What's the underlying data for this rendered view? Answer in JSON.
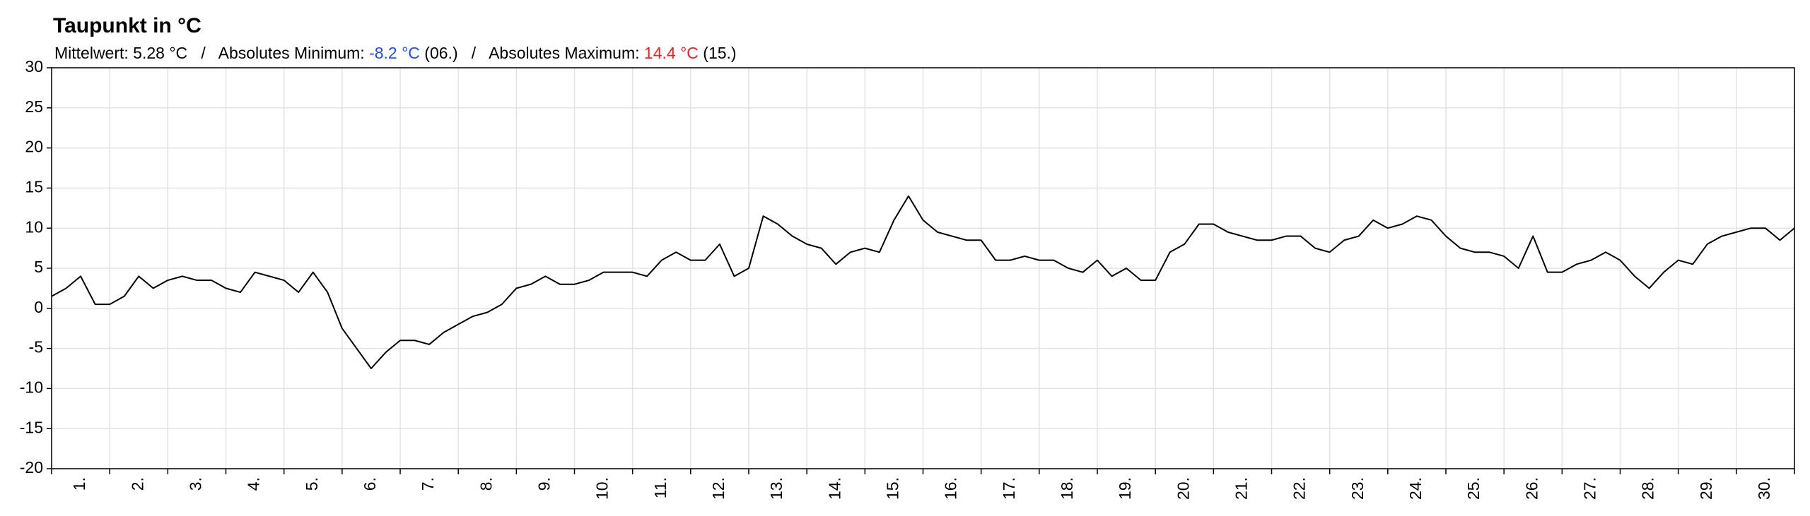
{
  "chart_data": {
    "type": "line",
    "title": "Taupunkt in °C",
    "subtitle_parts": [
      {
        "text": "Mittelwert: 5.28 °C   /   Absolutes Minimum: "
      },
      {
        "text": "-8.2 °C",
        "color": "#1a4cff"
      },
      {
        "text": " (06.)   /   Absolutes Maximum: "
      },
      {
        "text": "14.4 °C",
        "color": "#ff1a1a"
      },
      {
        "text": " (15.)"
      }
    ],
    "categories": [
      "1.",
      "2.",
      "3.",
      "4.",
      "5.",
      "6.",
      "7.",
      "8.",
      "9.",
      "10.",
      "11.",
      "12.",
      "13.",
      "14.",
      "15.",
      "16.",
      "17.",
      "18.",
      "19.",
      "20.",
      "21.",
      "22.",
      "23.",
      "24.",
      "25.",
      "26.",
      "27.",
      "28.",
      "29.",
      "30."
    ],
    "x": [
      0,
      0.25,
      0.5,
      0.75,
      1,
      1.25,
      1.5,
      1.75,
      2,
      2.25,
      2.5,
      2.75,
      3,
      3.25,
      3.5,
      3.75,
      4,
      4.25,
      4.5,
      4.75,
      5,
      5.25,
      5.5,
      5.75,
      6,
      6.25,
      6.5,
      6.75,
      7,
      7.25,
      7.5,
      7.75,
      8,
      8.25,
      8.5,
      8.75,
      9,
      9.25,
      9.5,
      9.75,
      10,
      10.25,
      10.5,
      10.75,
      11,
      11.25,
      11.5,
      11.75,
      12,
      12.25,
      12.5,
      12.75,
      13,
      13.25,
      13.5,
      13.75,
      14,
      14.25,
      14.5,
      14.75,
      15,
      15.25,
      15.5,
      15.75,
      16,
      16.25,
      16.5,
      16.75,
      17,
      17.25,
      17.5,
      17.75,
      18,
      18.25,
      18.5,
      18.75,
      19,
      19.25,
      19.5,
      19.75,
      20,
      20.25,
      20.5,
      20.75,
      21,
      21.25,
      21.5,
      21.75,
      22,
      22.25,
      22.5,
      22.75,
      23,
      23.25,
      23.5,
      23.75,
      24,
      24.25,
      24.5,
      24.75,
      25,
      25.25,
      25.5,
      25.75,
      26,
      26.25,
      26.5,
      26.75,
      27,
      27.25,
      27.5,
      27.75,
      28,
      28.25,
      28.5,
      28.75,
      29,
      29.25,
      29.5,
      29.75,
      30
    ],
    "series": [
      {
        "name": "Taupunkt",
        "color": "#000000",
        "values": [
          1.5,
          2.5,
          4,
          0.5,
          0.5,
          1.5,
          4,
          2.5,
          3.5,
          4,
          3.5,
          3.5,
          2.5,
          2,
          4.5,
          4,
          3.5,
          2,
          4.5,
          2,
          -2.5,
          -5,
          -7.5,
          -5.5,
          -4,
          -4,
          -4.5,
          -3,
          -2,
          -1,
          -0.5,
          0.5,
          2.5,
          3,
          4,
          3,
          3,
          3.5,
          4.5,
          4.5,
          4.5,
          4,
          6,
          7,
          6,
          6,
          8,
          4,
          5,
          11.5,
          10.5,
          9,
          8,
          7.5,
          5.5,
          7,
          7.5,
          7,
          11,
          14,
          11,
          9.5,
          9,
          8.5,
          8.5,
          6,
          6,
          6.5,
          6,
          6,
          5,
          4.5,
          6,
          4,
          5,
          3.5,
          3.5,
          7,
          8,
          10.5,
          10.5,
          9.5,
          9,
          8.5,
          8.5,
          9,
          9,
          7.5,
          7,
          8.5,
          9,
          11,
          10,
          10.5,
          11.5,
          11,
          9,
          7.5,
          7,
          7,
          6.5,
          5,
          9,
          4.5,
          4.5,
          5.5,
          6,
          7,
          6,
          4,
          2.5,
          4.5,
          6,
          5.5,
          8,
          9,
          9.5,
          10,
          10,
          8.5,
          10
        ]
      }
    ],
    "xlim": [
      0,
      30
    ],
    "xticks": [
      0,
      1,
      2,
      3,
      4,
      5,
      6,
      7,
      8,
      9,
      10,
      11,
      12,
      13,
      14,
      15,
      16,
      17,
      18,
      19,
      20,
      21,
      22,
      23,
      24,
      25,
      26,
      27,
      28,
      29,
      30
    ],
    "ylim": [
      -20,
      30
    ],
    "yticks": [
      -20,
      -15,
      -10,
      -5,
      0,
      5,
      10,
      15,
      20,
      25,
      30
    ],
    "grid": true,
    "legend": false
  }
}
